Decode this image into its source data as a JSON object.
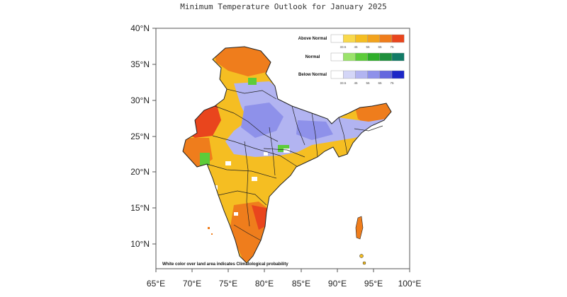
{
  "title": "Minimum Temperature Outlook for January 2025",
  "axes": {
    "x_ticks": [
      "65°E",
      "70°E",
      "75°E",
      "80°E",
      "85°E",
      "90°E",
      "95°E",
      "100°E"
    ],
    "y_ticks": [
      "40°N",
      "35°N",
      "30°N",
      "25°N",
      "20°N",
      "15°N",
      "10°N"
    ]
  },
  "legend": {
    "categories": [
      {
        "label": "Above Normal",
        "colors": [
          "#ffffff",
          "#f9d94c",
          "#f5be22",
          "#f2a31e",
          "#ef7d1c",
          "#e9451d"
        ]
      },
      {
        "label": "Normal",
        "colors": [
          "#ffffff",
          "#9be36b",
          "#5dcc3a",
          "#2fae2b",
          "#1e8f3c",
          "#127a66"
        ]
      },
      {
        "label": "Below Normal",
        "colors": [
          "#ffffff",
          "#d4d6f7",
          "#b2b4f1",
          "#8e91ea",
          "#6467de",
          "#1d27c7"
        ]
      }
    ],
    "bins": [
      "33.5",
      "45",
      "55",
      "65",
      "75"
    ]
  },
  "footnote": "White color over land area indicates Climatological probability",
  "colors": {
    "above": "#f5be22",
    "above_high": "#ef7d1c",
    "above_max": "#e9451d",
    "below": "#b2b4f1",
    "below_high": "#8e91ea",
    "normal": "#5dcc3a",
    "border": "#222222",
    "frame": "#555555"
  }
}
